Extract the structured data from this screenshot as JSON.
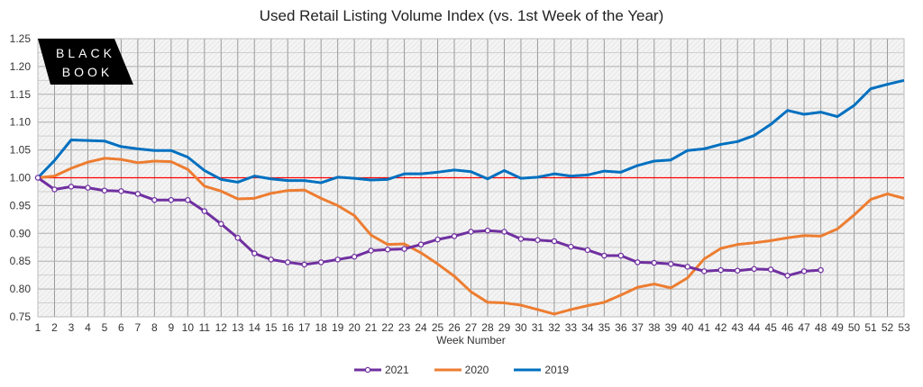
{
  "chart_data": {
    "type": "line",
    "title": "Used Retail Listing Volume Index (vs. 1st Week of the Year)",
    "xlabel": "Week Number",
    "ylabel": "",
    "xlim": [
      1,
      53
    ],
    "ylim": [
      0.75,
      1.25
    ],
    "yticks": [
      "0.75",
      "0.80",
      "0.85",
      "0.90",
      "0.95",
      "1.00",
      "1.05",
      "1.10",
      "1.15",
      "1.20",
      "1.25"
    ],
    "grid": true,
    "legend": "bottom",
    "reference_line": {
      "value": 1.0,
      "color": "#ff0000"
    },
    "logo_text": "BLACK BOOK",
    "series": [
      {
        "name": "2021",
        "color": "#7030a0",
        "markers": true,
        "values": [
          1.0,
          0.979,
          0.984,
          0.982,
          0.977,
          0.976,
          0.971,
          0.96,
          0.96,
          0.96,
          0.94,
          0.917,
          0.892,
          0.864,
          0.853,
          0.848,
          0.844,
          0.848,
          0.853,
          0.858,
          0.869,
          0.871,
          0.872,
          0.88,
          0.889,
          0.895,
          0.903,
          0.905,
          0.903,
          0.89,
          0.888,
          0.886,
          0.876,
          0.87,
          0.86,
          0.86,
          0.848,
          0.847,
          0.845,
          0.84,
          0.832,
          0.834,
          0.833,
          0.836,
          0.835,
          0.824,
          0.832,
          0.834
        ]
      },
      {
        "name": "2020",
        "color": "#ed7d31",
        "markers": false,
        "values": [
          1.0,
          1.003,
          1.017,
          1.028,
          1.035,
          1.033,
          1.027,
          1.03,
          1.029,
          1.015,
          0.985,
          0.976,
          0.962,
          0.963,
          0.972,
          0.977,
          0.978,
          0.963,
          0.95,
          0.932,
          0.897,
          0.88,
          0.881,
          0.865,
          0.845,
          0.823,
          0.795,
          0.776,
          0.775,
          0.771,
          0.763,
          0.755,
          0.763,
          0.77,
          0.776,
          0.789,
          0.803,
          0.809,
          0.802,
          0.82,
          0.854,
          0.873,
          0.88,
          0.883,
          0.887,
          0.892,
          0.896,
          0.895,
          0.908,
          0.933,
          0.961,
          0.971,
          0.963
        ]
      },
      {
        "name": "2019",
        "color": "#0070c0",
        "markers": false,
        "values": [
          1.0,
          1.031,
          1.068,
          1.067,
          1.066,
          1.056,
          1.052,
          1.049,
          1.049,
          1.037,
          1.013,
          0.997,
          0.992,
          1.003,
          0.998,
          0.995,
          0.995,
          0.991,
          1.001,
          0.999,
          0.996,
          0.997,
          1.007,
          1.007,
          1.01,
          1.014,
          1.011,
          0.998,
          1.013,
          0.999,
          1.001,
          1.007,
          1.003,
          1.005,
          1.012,
          1.01,
          1.022,
          1.03,
          1.032,
          1.049,
          1.052,
          1.06,
          1.065,
          1.076,
          1.096,
          1.121,
          1.114,
          1.118,
          1.11,
          1.13,
          1.16,
          1.168,
          1.175
        ]
      }
    ]
  }
}
